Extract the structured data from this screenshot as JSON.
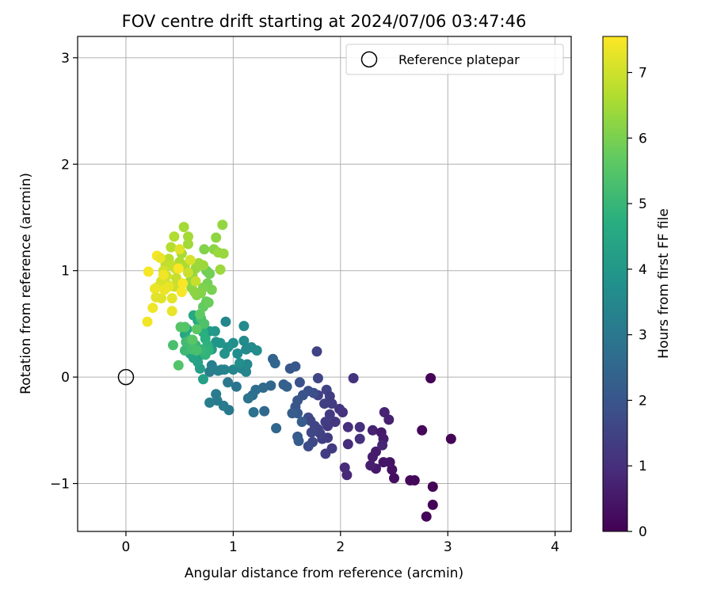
{
  "chart_data": {
    "type": "scatter",
    "title": "FOV centre drift starting at 2024/07/06 03:47:46",
    "xlabel": "Angular distance from reference (arcmin)",
    "ylabel": "Rotation from reference (arcmin)",
    "xlim": [
      -0.45,
      4.15
    ],
    "ylim": [
      -1.45,
      3.2
    ],
    "xticks": [
      0,
      1,
      2,
      3,
      4
    ],
    "xtick_labels": [
      "0",
      "1",
      "2",
      "3",
      "4"
    ],
    "yticks": [
      -1,
      0,
      1,
      2,
      3
    ],
    "ytick_labels": [
      "−1",
      "0",
      "1",
      "2",
      "3"
    ],
    "grid": true,
    "legend": {
      "placement": "top-right",
      "entries": [
        "Reference platepar"
      ]
    },
    "reference_point": {
      "x": 0,
      "y": 0,
      "label": "Reference platepar"
    },
    "colorbar": {
      "label": "Hours from first FF file",
      "range": [
        0,
        7.55
      ],
      "ticks": [
        0,
        1,
        2,
        3,
        4,
        5,
        6,
        7
      ],
      "tick_labels": [
        "0",
        "1",
        "2",
        "3",
        "4",
        "5",
        "6",
        "7"
      ],
      "colormap": "viridis"
    },
    "points": [
      [
        2.84,
        -0.01,
        0.05
      ],
      [
        3.03,
        -0.58,
        0.08
      ],
      [
        2.76,
        -0.5,
        0.12
      ],
      [
        2.86,
        -1.03,
        0.05
      ],
      [
        2.86,
        -1.2,
        0.08
      ],
      [
        2.8,
        -1.31,
        0.1
      ],
      [
        2.65,
        -0.97,
        0.18
      ],
      [
        2.69,
        -0.97,
        0.15
      ],
      [
        2.5,
        -0.95,
        0.3
      ],
      [
        2.48,
        -0.87,
        0.35
      ],
      [
        2.46,
        -0.8,
        0.4
      ],
      [
        2.4,
        -0.8,
        0.45
      ],
      [
        2.33,
        -0.86,
        0.5
      ],
      [
        2.33,
        -0.7,
        0.55
      ],
      [
        2.3,
        -0.75,
        0.6
      ],
      [
        2.28,
        -0.83,
        0.65
      ],
      [
        2.3,
        -0.5,
        0.7
      ],
      [
        2.38,
        -0.52,
        0.55
      ],
      [
        2.4,
        -0.58,
        0.6
      ],
      [
        2.41,
        -0.33,
        0.75
      ],
      [
        2.45,
        -0.4,
        0.7
      ],
      [
        2.39,
        -0.64,
        0.8
      ],
      [
        2.06,
        -0.92,
        0.85
      ],
      [
        2.04,
        -0.85,
        0.9
      ],
      [
        2.07,
        -0.63,
        0.95
      ],
      [
        2.07,
        -0.47,
        1.0
      ],
      [
        2.18,
        -0.47,
        1.0
      ],
      [
        2.18,
        -0.58,
        1.05
      ],
      [
        2.12,
        -0.01,
        1.1
      ],
      [
        2.02,
        -0.33,
        1.1
      ],
      [
        1.99,
        -0.3,
        1.15
      ],
      [
        1.95,
        -0.42,
        1.2
      ],
      [
        1.88,
        -0.46,
        1.25
      ],
      [
        1.88,
        -0.57,
        1.3
      ],
      [
        1.86,
        -0.72,
        1.35
      ],
      [
        1.92,
        -0.67,
        1.3
      ],
      [
        1.83,
        -0.58,
        1.4
      ],
      [
        1.81,
        -0.53,
        1.45
      ],
      [
        1.79,
        -0.49,
        1.5
      ],
      [
        1.76,
        -0.46,
        1.55
      ],
      [
        1.73,
        -0.52,
        1.6
      ],
      [
        1.74,
        -0.61,
        1.65
      ],
      [
        1.7,
        -0.65,
        1.7
      ],
      [
        1.7,
        -0.38,
        1.75
      ],
      [
        1.72,
        -0.41,
        1.6
      ],
      [
        1.86,
        -0.42,
        1.35
      ],
      [
        1.9,
        -0.35,
        1.3
      ],
      [
        1.85,
        -0.25,
        1.4
      ],
      [
        1.79,
        -0.17,
        1.45
      ],
      [
        1.87,
        -0.12,
        1.5
      ],
      [
        1.9,
        -0.18,
        1.4
      ],
      [
        1.92,
        -0.25,
        1.35
      ],
      [
        1.78,
        0.24,
        1.5
      ],
      [
        1.79,
        -0.01,
        1.6
      ],
      [
        1.75,
        -0.15,
        1.8
      ],
      [
        1.7,
        -0.13,
        1.85
      ],
      [
        1.62,
        -0.05,
        1.9
      ],
      [
        1.53,
        0.08,
        2.0
      ],
      [
        1.58,
        0.1,
        2.05
      ],
      [
        1.65,
        -0.17,
        1.95
      ],
      [
        1.6,
        -0.22,
        2.0
      ],
      [
        1.58,
        -0.28,
        2.0
      ],
      [
        1.6,
        -0.34,
        2.1
      ],
      [
        1.6,
        -0.56,
        2.1
      ],
      [
        1.61,
        -0.6,
        2.15
      ],
      [
        1.64,
        -0.42,
        2.2
      ],
      [
        1.55,
        -0.34,
        2.2
      ],
      [
        1.47,
        -0.07,
        2.3
      ],
      [
        1.5,
        -0.09,
        2.35
      ],
      [
        1.37,
        0.17,
        2.4
      ],
      [
        1.39,
        0.13,
        2.45
      ],
      [
        1.35,
        -0.08,
        2.5
      ],
      [
        1.4,
        -0.48,
        2.5
      ],
      [
        1.29,
        -0.32,
        2.55
      ],
      [
        1.28,
        -0.1,
        2.6
      ],
      [
        1.21,
        -0.12,
        2.7
      ],
      [
        1.18,
        -0.17,
        2.75
      ],
      [
        1.19,
        -0.33,
        2.8
      ],
      [
        1.14,
        -0.2,
        2.85
      ],
      [
        1.03,
        -0.09,
        2.9
      ],
      [
        0.95,
        -0.05,
        3.0
      ],
      [
        0.96,
        -0.31,
        3.05
      ],
      [
        0.91,
        -0.27,
        3.1
      ],
      [
        0.84,
        -0.16,
        3.1
      ],
      [
        0.85,
        -0.22,
        3.1
      ],
      [
        0.78,
        -0.24,
        3.2
      ],
      [
        0.78,
        0.05,
        3.2
      ],
      [
        0.8,
        0.11,
        3.25
      ],
      [
        0.86,
        0.06,
        3.3
      ],
      [
        0.89,
        0.07,
        3.3
      ],
      [
        0.92,
        0.07,
        3.35
      ],
      [
        1.0,
        0.07,
        3.4
      ],
      [
        1.08,
        0.08,
        3.4
      ],
      [
        1.12,
        0.05,
        3.45
      ],
      [
        1.13,
        0.12,
        3.5
      ],
      [
        1.12,
        0.26,
        3.55
      ],
      [
        1.1,
        0.34,
        3.6
      ],
      [
        1.1,
        0.48,
        3.55
      ],
      [
        1.17,
        0.28,
        3.55
      ],
      [
        1.22,
        0.25,
        3.6
      ],
      [
        1.04,
        0.22,
        3.65
      ],
      [
        1.06,
        0.13,
        3.7
      ],
      [
        1.0,
        0.32,
        3.7
      ],
      [
        0.95,
        0.28,
        3.8
      ],
      [
        0.93,
        0.52,
        3.45
      ],
      [
        0.92,
        0.22,
        3.85
      ],
      [
        0.88,
        0.32,
        3.9
      ],
      [
        0.84,
        0.33,
        3.9
      ],
      [
        0.83,
        0.43,
        4.0
      ],
      [
        0.78,
        0.43,
        4.05
      ],
      [
        0.8,
        0.26,
        4.1
      ],
      [
        0.7,
        0.21,
        4.15
      ],
      [
        0.69,
        0.08,
        4.2
      ],
      [
        0.72,
        -0.02,
        4.25
      ],
      [
        0.67,
        0.14,
        4.3
      ],
      [
        0.63,
        0.18,
        4.35
      ],
      [
        0.6,
        0.22,
        4.4
      ],
      [
        0.62,
        0.35,
        4.45
      ],
      [
        0.57,
        0.27,
        4.5
      ],
      [
        0.55,
        0.4,
        4.5
      ],
      [
        0.57,
        0.45,
        4.6
      ],
      [
        0.63,
        0.58,
        4.55
      ],
      [
        0.67,
        0.53,
        4.5
      ],
      [
        0.71,
        0.5,
        4.6
      ],
      [
        0.72,
        0.42,
        4.7
      ],
      [
        0.74,
        0.36,
        4.75
      ],
      [
        0.76,
        0.3,
        4.8
      ],
      [
        0.77,
        0.25,
        4.85
      ],
      [
        0.74,
        0.21,
        4.9
      ],
      [
        0.71,
        0.26,
        4.95
      ],
      [
        0.65,
        0.3,
        5.0
      ],
      [
        0.59,
        0.27,
        5.05
      ],
      [
        0.55,
        0.25,
        5.1
      ],
      [
        0.56,
        0.33,
        5.15
      ],
      [
        0.6,
        0.35,
        5.2
      ],
      [
        0.62,
        0.26,
        5.25
      ],
      [
        0.66,
        0.25,
        5.3
      ],
      [
        0.7,
        0.55,
        5.3
      ],
      [
        0.73,
        0.5,
        5.4
      ],
      [
        0.55,
        0.47,
        5.45
      ],
      [
        0.51,
        0.47,
        5.5
      ],
      [
        0.44,
        0.3,
        5.3
      ],
      [
        0.49,
        0.11,
        5.45
      ],
      [
        0.62,
        0.35,
        5.55
      ],
      [
        0.66,
        0.45,
        5.6
      ],
      [
        0.69,
        0.59,
        5.65
      ],
      [
        0.72,
        0.66,
        5.7
      ],
      [
        0.75,
        0.71,
        5.75
      ],
      [
        0.77,
        0.7,
        5.8
      ],
      [
        0.77,
        0.98,
        5.8
      ],
      [
        0.75,
        1.0,
        5.85
      ],
      [
        0.78,
        0.97,
        5.9
      ],
      [
        0.76,
        0.88,
        5.95
      ],
      [
        0.8,
        0.82,
        6.0
      ],
      [
        0.72,
        0.84,
        6.05
      ],
      [
        0.7,
        0.79,
        6.1
      ],
      [
        0.66,
        0.77,
        6.15
      ],
      [
        0.64,
        0.8,
        6.2
      ],
      [
        0.61,
        0.84,
        6.25
      ],
      [
        0.6,
        0.9,
        6.3
      ],
      [
        0.62,
        0.95,
        6.3
      ],
      [
        0.65,
        1.02,
        6.35
      ],
      [
        0.68,
        1.07,
        6.4
      ],
      [
        0.72,
        1.05,
        6.4
      ],
      [
        0.73,
        1.2,
        6.1
      ],
      [
        0.82,
        1.2,
        6.2
      ],
      [
        0.84,
        1.31,
        6.25
      ],
      [
        0.9,
        1.43,
        6.3
      ],
      [
        0.91,
        1.16,
        6.35
      ],
      [
        0.86,
        1.17,
        6.35
      ],
      [
        0.88,
        1.01,
        6.4
      ],
      [
        0.58,
        1.25,
        6.45
      ],
      [
        0.58,
        1.32,
        6.5
      ],
      [
        0.54,
        1.41,
        6.5
      ],
      [
        0.52,
        1.16,
        6.55
      ],
      [
        0.5,
        1.08,
        6.6
      ],
      [
        0.55,
        1.05,
        6.6
      ],
      [
        0.45,
        1.32,
        6.65
      ],
      [
        0.42,
        1.22,
        6.7
      ],
      [
        0.4,
        1.11,
        6.75
      ],
      [
        0.37,
        1.06,
        6.8
      ],
      [
        0.42,
        1.05,
        6.85
      ],
      [
        0.46,
        1.02,
        6.9
      ],
      [
        0.47,
        0.93,
        6.9
      ],
      [
        0.45,
        0.85,
        6.95
      ],
      [
        0.4,
        0.86,
        7.0
      ],
      [
        0.38,
        0.95,
        7.0
      ],
      [
        0.35,
        1.0,
        7.05
      ],
      [
        0.33,
        0.9,
        7.1
      ],
      [
        0.3,
        0.85,
        7.15
      ],
      [
        0.28,
        0.75,
        7.2
      ],
      [
        0.33,
        0.74,
        7.2
      ],
      [
        0.43,
        0.74,
        7.25
      ],
      [
        0.43,
        0.62,
        7.3
      ],
      [
        0.4,
        0.85,
        7.3
      ],
      [
        0.36,
        0.82,
        7.35
      ],
      [
        0.27,
        0.83,
        7.35
      ],
      [
        0.25,
        0.65,
        7.4
      ],
      [
        0.2,
        0.52,
        7.4
      ],
      [
        0.21,
        0.99,
        7.45
      ],
      [
        0.29,
        1.14,
        7.45
      ],
      [
        0.49,
        1.02,
        7.5
      ],
      [
        0.53,
        0.88,
        7.5
      ],
      [
        0.52,
        0.8,
        7.5
      ],
      [
        0.35,
        0.96,
        7.4
      ],
      [
        0.32,
        1.12,
        7.35
      ],
      [
        0.5,
        1.2,
        7.2
      ],
      [
        0.6,
        1.1,
        7.1
      ],
      [
        0.65,
        0.9,
        6.9
      ],
      [
        0.58,
        0.98,
        6.95
      ]
    ]
  }
}
